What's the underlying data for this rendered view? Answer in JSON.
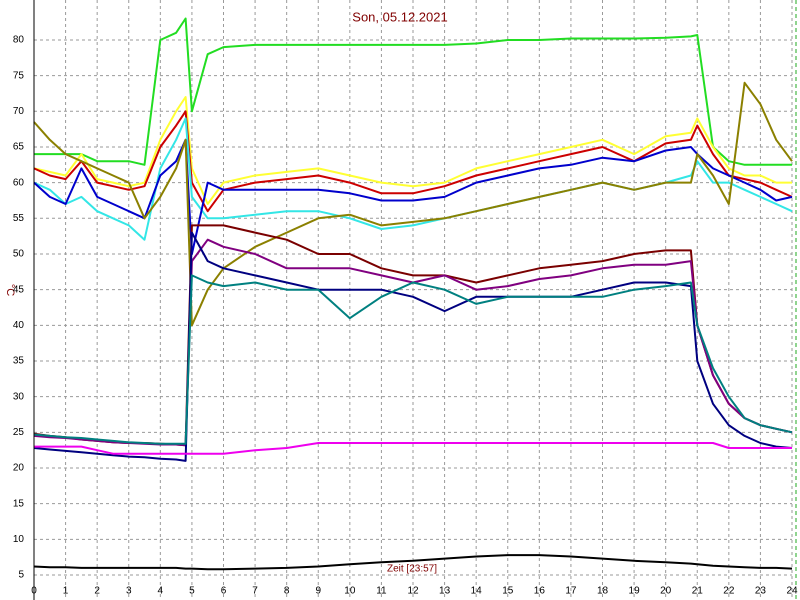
{
  "chart_data": {
    "type": "line",
    "title": "Son, 05.12.2021",
    "xlabel": "Zeit [23:57]",
    "ylabel": "°C",
    "x": [
      0,
      0.5,
      1,
      1.5,
      2,
      2.5,
      3,
      3.5,
      4,
      4.5,
      4.8,
      5,
      5.5,
      6,
      7,
      8,
      9,
      10,
      11,
      12,
      13,
      14,
      15,
      16,
      17,
      18,
      19,
      20,
      20.8,
      21,
      21.5,
      22,
      22.5,
      23,
      23.5,
      24
    ],
    "xlim": [
      0,
      24
    ],
    "xticks": [
      0,
      1,
      2,
      3,
      4,
      5,
      6,
      7,
      8,
      9,
      10,
      11,
      12,
      13,
      14,
      15,
      16,
      17,
      18,
      19,
      20,
      21,
      22,
      23,
      24
    ],
    "ylim": [
      1.5,
      85.6
    ],
    "yticks": [
      5,
      10,
      15,
      20,
      25,
      30,
      35,
      40,
      45,
      50,
      55,
      60,
      65,
      70,
      75,
      80
    ],
    "grid": true,
    "series": [
      {
        "color": "#22dd22",
        "values": [
          64,
          64,
          64,
          64,
          63,
          63,
          63,
          62.5,
          80,
          81,
          83,
          70,
          78,
          79,
          79.3,
          79.3,
          79.3,
          79.3,
          79.3,
          79.3,
          79.3,
          79.5,
          80,
          80,
          80.2,
          80.2,
          80.2,
          80.3,
          80.5,
          80.7,
          65,
          63,
          62.5,
          62.5,
          62.5,
          62.5
        ]
      },
      {
        "color": "#ffff33",
        "values": [
          62,
          61.5,
          61,
          64,
          60.5,
          60,
          59.5,
          60,
          66,
          70,
          72,
          62,
          57,
          60,
          61,
          61.5,
          62,
          61,
          60,
          59.5,
          60,
          62,
          63,
          64,
          65,
          66,
          64,
          66.5,
          67,
          69,
          65,
          62,
          61,
          61,
          60,
          60
        ]
      },
      {
        "color": "#cc0000",
        "values": [
          62,
          61,
          60.5,
          63,
          60,
          59.5,
          59,
          59.5,
          65,
          68,
          70,
          60,
          56,
          59,
          60,
          60.5,
          61,
          60,
          58.5,
          58.5,
          59.5,
          61,
          62,
          63,
          64,
          65,
          63,
          65.5,
          66,
          68,
          64,
          61,
          60.5,
          60,
          59,
          58
        ]
      },
      {
        "color": "#33e6e6",
        "values": [
          60,
          59,
          57,
          58,
          56,
          55,
          54,
          52,
          62,
          66,
          69,
          58,
          55,
          55,
          55.5,
          56,
          56,
          55,
          53.5,
          54,
          55,
          56,
          57,
          58,
          59,
          60,
          59,
          60,
          61,
          63,
          60,
          60,
          59,
          58,
          57,
          56
        ]
      },
      {
        "color": "#0000cc",
        "values": [
          60,
          58,
          57,
          62,
          58,
          57,
          56,
          55,
          61,
          63,
          66,
          50,
          60,
          59,
          59,
          59,
          59,
          58.5,
          57.5,
          57.5,
          58,
          60,
          61,
          62,
          62.5,
          63.5,
          63,
          64.5,
          65,
          64,
          62,
          61,
          60,
          59,
          57.5,
          58
        ]
      },
      {
        "color": "#8b8000",
        "values": [
          68.5,
          66,
          64,
          63,
          62,
          61,
          60,
          55,
          58,
          62,
          66,
          40,
          45,
          48,
          51,
          53,
          55,
          55.5,
          54,
          54.5,
          55,
          56,
          57,
          58,
          59,
          60,
          59,
          60,
          60,
          64,
          61,
          57,
          74,
          71,
          66,
          63
        ]
      },
      {
        "color": "#7a0000",
        "values": [
          24.8,
          24.5,
          24.3,
          24,
          23.8,
          23.6,
          23.5,
          23.5,
          23.4,
          23.3,
          23.2,
          54,
          54,
          54,
          53,
          52,
          50,
          50,
          48,
          47,
          47,
          46,
          47,
          48,
          48.5,
          49,
          50,
          50.5,
          50.5,
          40,
          33,
          29,
          27,
          26,
          25.5,
          25
        ]
      },
      {
        "color": "#800080",
        "values": [
          24.5,
          24.3,
          24.2,
          24,
          23.8,
          23.6,
          23.5,
          23.4,
          23.3,
          23.3,
          23.2,
          49,
          52,
          51,
          50,
          48,
          48,
          48,
          47,
          46,
          47,
          45,
          45.5,
          46.5,
          47,
          48,
          48.5,
          48.5,
          49,
          40,
          33,
          29,
          27,
          26,
          25.5,
          25
        ]
      },
      {
        "color": "#000080",
        "values": [
          22.8,
          22.6,
          22.4,
          22.2,
          22,
          21.8,
          21.6,
          21.5,
          21.3,
          21.2,
          21,
          53,
          49,
          48,
          47,
          46,
          45,
          45,
          45,
          44,
          42,
          44,
          44,
          44,
          44,
          45,
          46,
          46,
          45.5,
          35,
          29,
          26,
          24.5,
          23.5,
          23,
          22.8
        ]
      },
      {
        "color": "#008080",
        "values": [
          24.7,
          24.5,
          24.3,
          24.2,
          24,
          23.8,
          23.6,
          23.5,
          23.4,
          23.4,
          23.4,
          47,
          46,
          45.5,
          46,
          45,
          45,
          41,
          44,
          46,
          45,
          43,
          44,
          44,
          44,
          44,
          45,
          45.5,
          46,
          40,
          34,
          30,
          27,
          26,
          25.5,
          25
        ]
      },
      {
        "color": "#ee00ee",
        "values": [
          23,
          23,
          23,
          23,
          22.5,
          22,
          22,
          22,
          22,
          22,
          22,
          22,
          22,
          22,
          22.5,
          22.8,
          23.5,
          23.5,
          23.5,
          23.5,
          23.5,
          23.5,
          23.5,
          23.5,
          23.5,
          23.5,
          23.5,
          23.5,
          23.5,
          23.5,
          23.5,
          22.8,
          22.8,
          22.8,
          22.8,
          22.8
        ]
      },
      {
        "color": "#000000",
        "values": [
          6.2,
          6.1,
          6.1,
          6,
          6,
          6,
          6,
          6,
          6,
          6,
          5.9,
          5.9,
          5.8,
          5.8,
          5.9,
          6,
          6.2,
          6.5,
          6.8,
          7,
          7.3,
          7.6,
          7.8,
          7.8,
          7.6,
          7.3,
          7,
          6.8,
          6.6,
          6.5,
          6.3,
          6.2,
          6.1,
          6,
          6,
          5.9
        ]
      }
    ]
  }
}
